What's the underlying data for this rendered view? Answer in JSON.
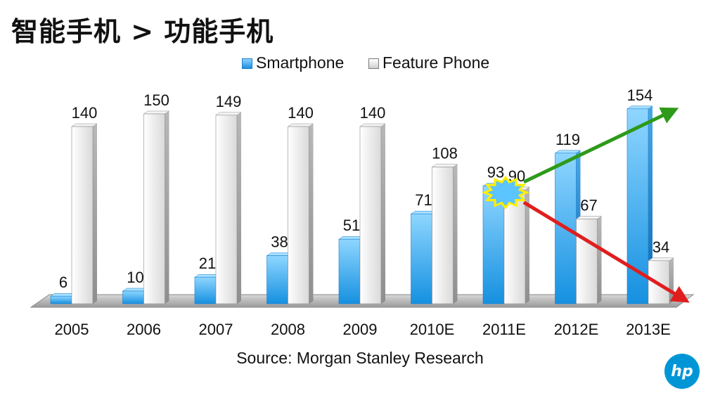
{
  "title": "智能手机 > 功能手机",
  "source": "Source: Morgan Stanley Research",
  "logo_text": "hp",
  "legend": {
    "smartphone": "Smartphone",
    "feature": "Feature Phone"
  },
  "colors": {
    "smartphone": "#2aa3ee",
    "feature": "#e6e6e6",
    "up_arrow": "#2e9a1a",
    "down_arrow": "#e01e1e",
    "burst_fill": "#5cc4ff",
    "burst_stroke": "#ffee00",
    "logo": "#0096d6"
  },
  "chart_data": {
    "type": "bar",
    "categories": [
      "2005",
      "2006",
      "2007",
      "2008",
      "2009",
      "2010E",
      "2011E",
      "2012E",
      "2013E"
    ],
    "series": [
      {
        "name": "Smartphone",
        "values": [
          6,
          10,
          21,
          38,
          51,
          71,
          93,
          119,
          154
        ]
      },
      {
        "name": "Feature Phone",
        "values": [
          140,
          150,
          149,
          140,
          140,
          108,
          90,
          67,
          34
        ]
      }
    ],
    "ylim": [
      0,
      165
    ],
    "legend_position": "top",
    "grid": false,
    "annotations": [
      {
        "type": "crossover-burst",
        "category": "2011E"
      },
      {
        "type": "arrow-up",
        "from": "2011E",
        "to": "2013E",
        "series": "Smartphone"
      },
      {
        "type": "arrow-down",
        "from": "2011E",
        "to": "2013E",
        "series": "Feature Phone"
      }
    ]
  }
}
